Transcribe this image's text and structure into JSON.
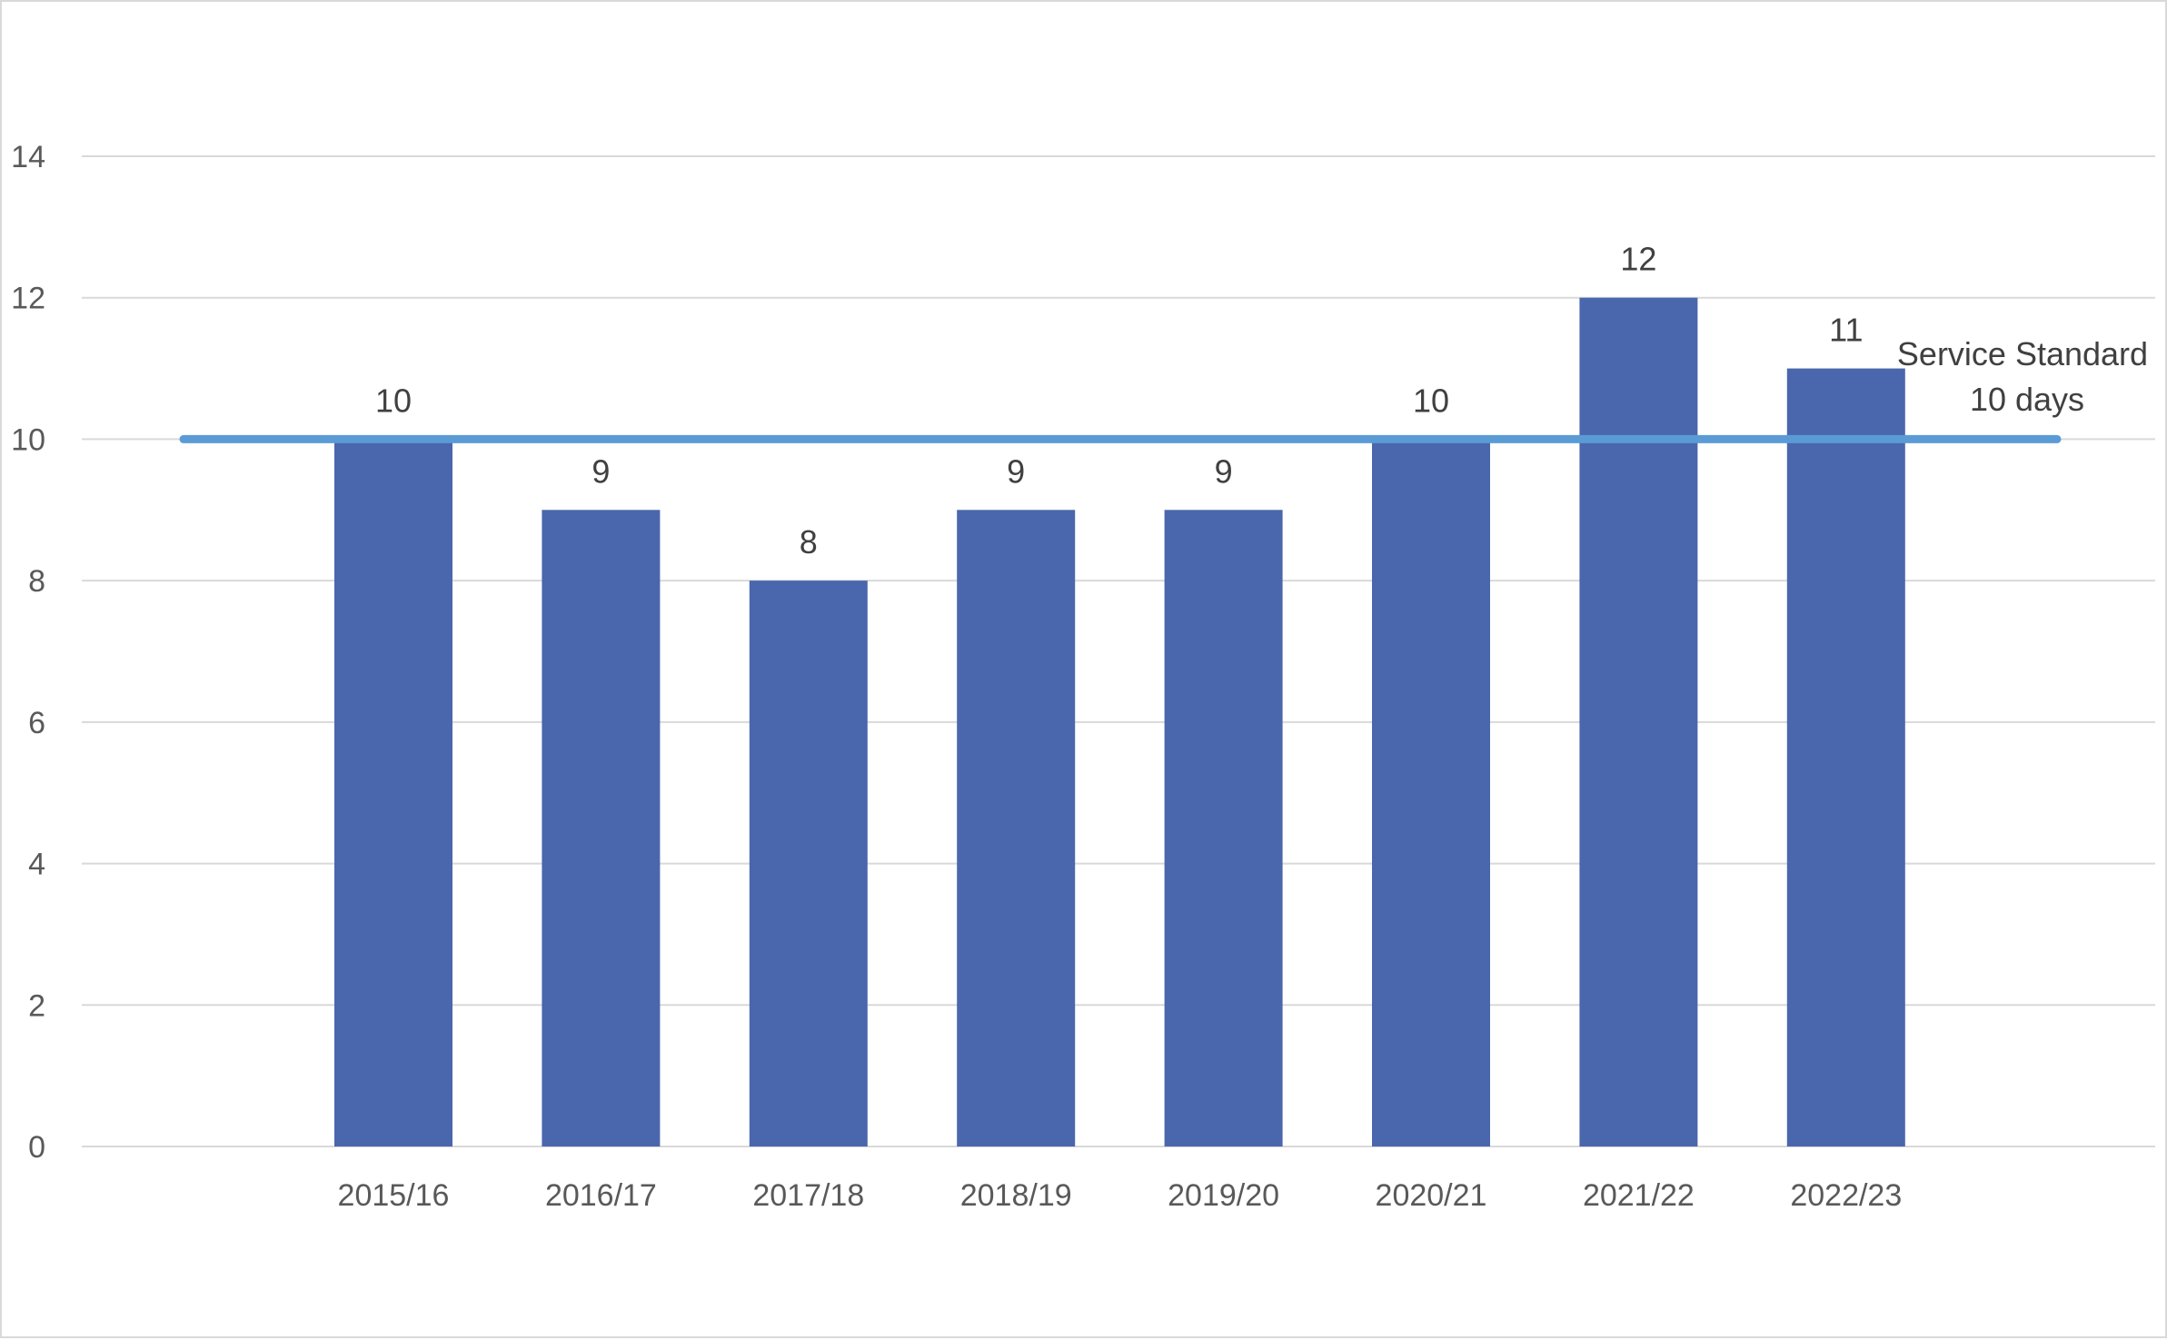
{
  "chart_data": {
    "type": "bar",
    "categories": [
      "2015/16",
      "2016/17",
      "2017/18",
      "2018/19",
      "2019/20",
      "2020/21",
      "2021/22",
      "2022/23"
    ],
    "values": [
      10,
      9,
      8,
      9,
      9,
      10,
      12,
      11
    ],
    "data_labels": [
      "10",
      "9",
      "8",
      "9",
      "9",
      "10",
      "12",
      "11"
    ],
    "title": "",
    "xlabel": "",
    "ylabel": "",
    "ylim": [
      0,
      14
    ],
    "yticks": [
      0,
      2,
      4,
      6,
      8,
      10,
      12,
      14
    ],
    "ytick_labels": [
      "0",
      "2",
      "4",
      "6",
      "8",
      "10",
      "12",
      "14"
    ],
    "grid": true,
    "legend": "none",
    "bar_color": "#4a66ad",
    "reference_line": {
      "value": 10,
      "color": "#5b9bd5",
      "label_lines": [
        "Service Standard",
        "10 days"
      ]
    }
  }
}
